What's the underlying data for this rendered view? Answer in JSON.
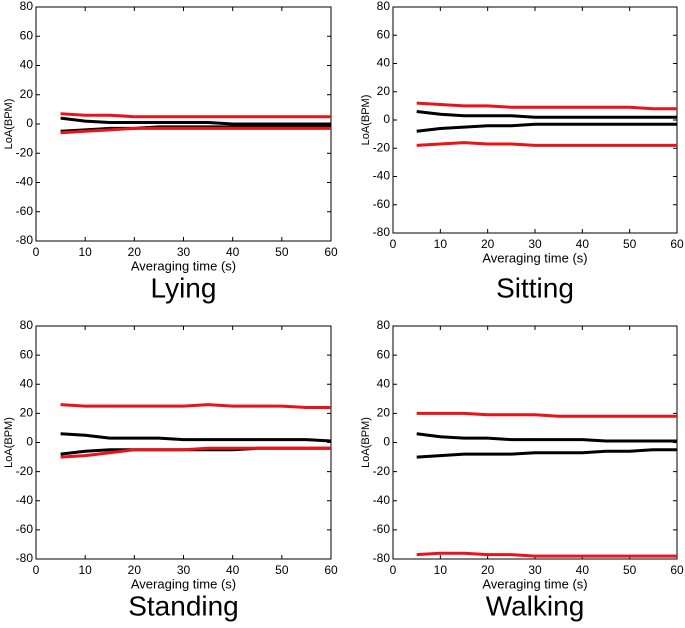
{
  "chart_data": [
    {
      "type": "line",
      "title": "Lying",
      "xlabel": "Averaging time (s)",
      "ylabel": "LoA(BPM)",
      "x": [
        5,
        10,
        15,
        20,
        25,
        30,
        35,
        40,
        45,
        50,
        55,
        60
      ],
      "series": [
        {
          "color": "#e8141a",
          "values": [
            7,
            6,
            6,
            5,
            5,
            5,
            5,
            5,
            5,
            5,
            5,
            5
          ]
        },
        {
          "color": "#000000",
          "values": [
            4,
            2,
            1,
            1,
            1,
            1,
            1,
            0,
            0,
            0,
            0,
            0
          ]
        },
        {
          "color": "#000000",
          "values": [
            -5,
            -4,
            -3,
            -3,
            -2,
            -2,
            -2,
            -2,
            -2,
            -2,
            -2,
            -2
          ]
        },
        {
          "color": "#e8141a",
          "values": [
            -6,
            -5,
            -4,
            -3,
            -3,
            -3,
            -3,
            -3,
            -3,
            -3,
            -3,
            -3
          ]
        }
      ],
      "xlim": [
        0,
        60
      ],
      "xticks": [
        0,
        10,
        20,
        30,
        40,
        50,
        60
      ],
      "ylim": [
        -80,
        80
      ],
      "yticks": [
        -80,
        -60,
        -40,
        -20,
        0,
        20,
        40,
        60,
        80
      ]
    },
    {
      "type": "line",
      "title": "Sitting",
      "xlabel": "Averaging time (s)",
      "ylabel": "LoA(BPM)",
      "x": [
        5,
        10,
        15,
        20,
        25,
        30,
        35,
        40,
        45,
        50,
        55,
        60
      ],
      "series": [
        {
          "color": "#e8141a",
          "values": [
            12,
            11,
            10,
            10,
            9,
            9,
            9,
            9,
            9,
            9,
            8,
            8
          ]
        },
        {
          "color": "#000000",
          "values": [
            6,
            4,
            3,
            3,
            3,
            2,
            2,
            2,
            2,
            2,
            2,
            2
          ]
        },
        {
          "color": "#000000",
          "values": [
            -8,
            -6,
            -5,
            -4,
            -4,
            -3,
            -3,
            -3,
            -3,
            -3,
            -3,
            -3
          ]
        },
        {
          "color": "#e8141a",
          "values": [
            -18,
            -17,
            -16,
            -17,
            -17,
            -18,
            -18,
            -18,
            -18,
            -18,
            -18,
            -18
          ]
        }
      ],
      "xlim": [
        0,
        60
      ],
      "xticks": [
        0,
        10,
        20,
        30,
        40,
        50,
        60
      ],
      "ylim": [
        -80,
        80
      ],
      "yticks": [
        -80,
        -60,
        -40,
        -20,
        0,
        20,
        40,
        60,
        80
      ]
    },
    {
      "type": "line",
      "title": "Standing",
      "xlabel": "Averaging time (s)",
      "ylabel": "LoA(BPM)",
      "x": [
        5,
        10,
        15,
        20,
        25,
        30,
        35,
        40,
        45,
        50,
        55,
        60
      ],
      "series": [
        {
          "color": "#e8141a",
          "values": [
            26,
            25,
            25,
            25,
            25,
            25,
            26,
            25,
            25,
            25,
            24,
            24
          ]
        },
        {
          "color": "#000000",
          "values": [
            6,
            5,
            3,
            3,
            3,
            2,
            2,
            2,
            2,
            2,
            2,
            1
          ]
        },
        {
          "color": "#000000",
          "values": [
            -8,
            -6,
            -5,
            -5,
            -5,
            -5,
            -5,
            -5,
            -4,
            -4,
            -4,
            -4
          ]
        },
        {
          "color": "#e8141a",
          "values": [
            -10,
            -9,
            -7,
            -5,
            -5,
            -5,
            -4,
            -4,
            -4,
            -4,
            -4,
            -4
          ]
        }
      ],
      "xlim": [
        0,
        60
      ],
      "xticks": [
        0,
        10,
        20,
        30,
        40,
        50,
        60
      ],
      "ylim": [
        -80,
        80
      ],
      "yticks": [
        -80,
        -60,
        -40,
        -20,
        0,
        20,
        40,
        60,
        80
      ]
    },
    {
      "type": "line",
      "title": "Walking",
      "xlabel": "Averaging time (s)",
      "ylabel": "LoA(BPM)",
      "x": [
        5,
        10,
        15,
        20,
        25,
        30,
        35,
        40,
        45,
        50,
        55,
        60
      ],
      "series": [
        {
          "color": "#e8141a",
          "values": [
            20,
            20,
            20,
            19,
            19,
            19,
            18,
            18,
            18,
            18,
            18,
            18
          ]
        },
        {
          "color": "#000000",
          "values": [
            6,
            4,
            3,
            3,
            2,
            2,
            2,
            2,
            1,
            1,
            1,
            1
          ]
        },
        {
          "color": "#000000",
          "values": [
            -10,
            -9,
            -8,
            -8,
            -8,
            -7,
            -7,
            -7,
            -6,
            -6,
            -5,
            -5
          ]
        },
        {
          "color": "#e8141a",
          "values": [
            -77,
            -76,
            -76,
            -77,
            -77,
            -78,
            -78,
            -78,
            -78,
            -78,
            -78,
            -78
          ]
        }
      ],
      "xlim": [
        0,
        60
      ],
      "xticks": [
        0,
        10,
        20,
        30,
        40,
        50,
        60
      ],
      "ylim": [
        -80,
        80
      ],
      "yticks": [
        -80,
        -60,
        -40,
        -20,
        0,
        20,
        40,
        60,
        80
      ]
    }
  ]
}
